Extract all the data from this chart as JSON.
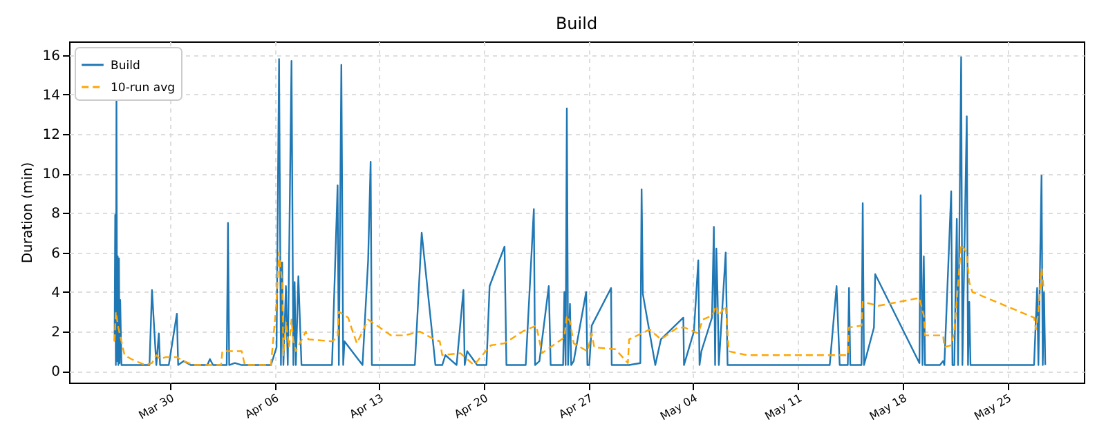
{
  "chart_data": {
    "type": "line",
    "title": "Build",
    "ylabel": "Duration (min)",
    "grid": true,
    "legend": "top left",
    "xlim": [
      "--03-23T06:00",
      "--05-30T03:00"
    ],
    "xticks": [
      {
        "value": "--03-30",
        "label": "Mar 30"
      },
      {
        "value": "--04-06",
        "label": "Apr 06"
      },
      {
        "value": "--04-13",
        "label": "Apr 13"
      },
      {
        "value": "--04-20",
        "label": "Apr 20"
      },
      {
        "value": "--04-27",
        "label": "Apr 27"
      },
      {
        "value": "--05-04",
        "label": "May 04"
      },
      {
        "value": "--05-11",
        "label": "May 11"
      },
      {
        "value": "--05-18",
        "label": "May 18"
      },
      {
        "value": "--05-25",
        "label": "May 25"
      }
    ],
    "ylim": [
      -0.59,
      16.69
    ],
    "yticks": [
      0,
      2,
      4,
      6,
      8,
      10,
      12,
      14,
      16
    ],
    "series": [
      {
        "name": "Build",
        "color": "#1f77b4",
        "line_style": "solid",
        "x": [
          "--03-26T07:00",
          "--03-26T08:00",
          "--03-26T09:00",
          "--03-26T10:00",
          "--03-26T11:00",
          "--03-26T12:00",
          "--03-26T13:00",
          "--03-26T14:00",
          "--03-26T15:00",
          "--03-26T16:00",
          "--03-26T18:00",
          "--03-26T23:00",
          "--03-27T21:00",
          "--03-28T15:00",
          "--03-28T19:00",
          "--03-29T02:00",
          "--03-29T06:00",
          "--03-29T08:00",
          "--03-29T22:00",
          "--03-30T11:00",
          "--03-30T13:00",
          "--03-30T22:00",
          "--03-31T09:00",
          "--04-01T12:00",
          "--04-01T16:00",
          "--04-01T21:00",
          "--04-02T19:00",
          "--04-02T21:00",
          "--04-02T23:00",
          "--04-03T08:00",
          "--04-03T19:00",
          "--04-05T05:00",
          "--04-05T18:00",
          "--04-06T03:00",
          "--04-06T07:00",
          "--04-06T10:00",
          "--04-06T12:00",
          "--04-06T14:00",
          "--04-06T18:00",
          "--04-06T21:00",
          "--04-07T03:00",
          "--04-07T06:00",
          "--04-07T08:00",
          "--04-07T10:00",
          "--04-07T14:00",
          "--04-07T19:00",
          "--04-09T20:00",
          "--04-10T05:00",
          "--04-10T07:00",
          "--04-10T11:00",
          "--04-10T14:00",
          "--04-10T16:00",
          "--04-11T21:00",
          "--04-12T06:00",
          "--04-12T10:00",
          "--04-12T12:00",
          "--04-15T09:00",
          "--04-15T20:00",
          "--04-16T18:00",
          "--04-17T05:00",
          "--04-17T10:00",
          "--04-18T04:00",
          "--04-18T15:00",
          "--04-18T17:00",
          "--04-18T21:00",
          "--04-19T13:00",
          "--04-20T04:00",
          "--04-20T09:00",
          "--04-21T09:00",
          "--04-21T12:00",
          "--04-22T19:00",
          "--04-23T08:00",
          "--04-23T10:00",
          "--04-23T17:00",
          "--04-24T08:00",
          "--04-24T11:00",
          "--04-25T07:00",
          "--04-25T09:00",
          "--04-25T11:00",
          "--04-25T13:00",
          "--04-25T15:00",
          "--04-25T18:00",
          "--04-25T20:00",
          "--04-26T00:00",
          "--04-26T20:00",
          "--04-26T22:00",
          "--04-27T01:00",
          "--04-27T05:00",
          "--04-28T12:00",
          "--04-28T13:00",
          "--04-29T17:00",
          "--04-30T11:00",
          "--04-30T13:00",
          "--04-30T15:00",
          "--05-01T11:00",
          "--05-01T20:00",
          "--05-03T08:00",
          "--05-03T09:00",
          "--05-04T01:00",
          "--05-04T08:00",
          "--05-04T10:00",
          "--05-04T13:00",
          "--05-05T06:00",
          "--05-05T09:00",
          "--05-05T11:00",
          "--05-05T13:00",
          "--05-05T15:00",
          "--05-05T17:00",
          "--05-06T04:00",
          "--05-06T07:00",
          "--05-07T14:00",
          "--05-13T03:00",
          "--05-13T14:00",
          "--05-13T19:00",
          "--05-14T08:00",
          "--05-14T10:00",
          "--05-14T12:00",
          "--05-15T06:00",
          "--05-15T08:00",
          "--05-15T10:00",
          "--05-16T02:00",
          "--05-16T04:00",
          "--05-19T03:00",
          "--05-19T05:00",
          "--05-19T08:00",
          "--05-19T10:00",
          "--05-19T12:00",
          "--05-20T12:00",
          "--05-20T17:00",
          "--05-20T19:00",
          "--05-21T06:00",
          "--05-21T08:00",
          "--05-21T11:00",
          "--05-21T15:00",
          "--05-21T17:00",
          "--05-21T22:00",
          "--05-22T00:00",
          "--05-22T07:00",
          "--05-22T09:00",
          "--05-22T11:00",
          "--05-22T13:00",
          "--05-26T19:00",
          "--05-27T00:00",
          "--05-27T02:00",
          "--05-27T07:00",
          "--05-27T09:00",
          "--05-27T11:00",
          "--05-27T13:00"
        ],
        "values": [
          1.5,
          7.9,
          0.3,
          13.7,
          0.5,
          5.8,
          0.3,
          5.7,
          0.4,
          3.6,
          0.3,
          0.3,
          0.3,
          0.3,
          4.1,
          0.3,
          1.9,
          0.3,
          0.3,
          2.9,
          0.3,
          0.5,
          0.3,
          0.3,
          0.6,
          0.3,
          0.3,
          7.5,
          0.3,
          0.4,
          0.3,
          0.3,
          0.3,
          1.2,
          15.8,
          0.3,
          5.5,
          0.3,
          4.3,
          0.3,
          15.7,
          0.3,
          4.5,
          0.3,
          4.8,
          0.3,
          0.3,
          9.4,
          0.3,
          15.5,
          0.3,
          1.5,
          0.3,
          5.6,
          10.6,
          0.3,
          0.3,
          7.0,
          0.3,
          0.3,
          0.8,
          0.3,
          4.1,
          0.3,
          1.0,
          0.3,
          0.3,
          4.3,
          6.3,
          0.3,
          0.3,
          8.2,
          0.3,
          0.5,
          4.3,
          0.3,
          0.3,
          4.0,
          0.3,
          13.3,
          0.3,
          3.4,
          0.3,
          0.5,
          4.0,
          0.3,
          0.3,
          2.3,
          4.2,
          0.3,
          0.3,
          0.4,
          9.2,
          3.9,
          0.3,
          1.6,
          2.7,
          0.3,
          2.0,
          5.6,
          0.3,
          1.0,
          2.7,
          7.3,
          0.3,
          6.2,
          3.8,
          0.3,
          6.0,
          0.3,
          0.3,
          0.3,
          4.3,
          0.3,
          0.3,
          4.2,
          0.3,
          0.3,
          8.5,
          0.3,
          2.2,
          4.9,
          0.4,
          8.9,
          0.3,
          5.8,
          0.3,
          0.3,
          0.5,
          0.3,
          9.1,
          0.3,
          0.3,
          7.7,
          0.3,
          15.9,
          0.3,
          12.9,
          0.3,
          3.5,
          0.3,
          0.3,
          4.2,
          0.3,
          9.9,
          0.3,
          4.0,
          0.3
        ]
      },
      {
        "name": "10-run avg",
        "color": "#ffa500",
        "line_style": "dashed",
        "x": [
          "--03-26T07:00",
          "--03-26T09:00",
          "--03-26T13:00",
          "--03-26T18:00",
          "--03-26T23:00",
          "--03-27T10:00",
          "--03-28T08:00",
          "--03-28T19:00",
          "--03-29T02:00",
          "--03-29T08:00",
          "--03-29T17:00",
          "--03-30T11:00",
          "--03-30T22:00",
          "--03-31T14:00",
          "--04-02T10:00",
          "--04-02T12:00",
          "--04-03T19:00",
          "--04-04T00:00",
          "--04-05T18:00",
          "--04-06T03:00",
          "--04-06T07:00",
          "--04-06T12:00",
          "--04-06T14:00",
          "--04-06T18:00",
          "--04-06T23:00",
          "--04-07T03:00",
          "--04-07T06:00",
          "--04-07T10:00",
          "--04-08T02:00",
          "--04-08T06:00",
          "--04-09T20:00",
          "--04-10T05:00",
          "--04-10T07:00",
          "--04-10T22:00",
          "--04-11T03:00",
          "--04-11T12:00",
          "--04-12T06:00",
          "--04-13T19:00",
          "--04-14T17:00",
          "--04-15T17:00",
          "--04-16T16:00",
          "--04-17T01:00",
          "--04-17T05:00",
          "--04-18T10:00",
          "--04-19T08:00",
          "--04-20T00:00",
          "--04-20T11:00",
          "--04-21T09:00",
          "--04-22T14:00",
          "--04-23T12:00",
          "--04-23T21:00",
          "--04-24T15:00",
          "--04-25T09:00",
          "--04-25T13:00",
          "--04-25T18:00",
          "--04-26T00:00",
          "--04-26T22:00",
          "--04-27T05:00",
          "--04-27T09:00",
          "--04-28T19:00",
          "--04-29T15:00",
          "--04-29T17:00",
          "--05-01T02:00",
          "--05-01T20:00",
          "--05-02T23:00",
          "--05-03T10:00",
          "--05-04T08:00",
          "--05-04T15:00",
          "--05-05T06:00",
          "--05-05T13:00",
          "--05-05T17:00",
          "--05-06T04:00",
          "--05-06T09:00",
          "--05-07T14:00",
          "--05-14T08:00",
          "--05-14T10:00",
          "--05-15T06:00",
          "--05-15T08:00",
          "--05-16T09:00",
          "--05-19T03:00",
          "--05-19T10:00",
          "--05-19T12:00",
          "--05-20T17:00",
          "--05-20T19:00",
          "--05-21T06:00",
          "--05-21T11:00",
          "--05-21T22:00",
          "--05-22T07:00",
          "--05-22T11:00",
          "--05-22T16:00",
          "--05-26T19:00",
          "--05-26T22:00",
          "--05-27T02:00",
          "--05-27T07:00",
          "--05-27T11:00"
        ],
        "values": [
          1.5,
          3.0,
          2.2,
          1.5,
          0.8,
          0.6,
          0.3,
          0.4,
          0.8,
          0.6,
          0.7,
          0.7,
          0.5,
          0.3,
          0.3,
          1.0,
          1.0,
          0.3,
          0.3,
          3.5,
          6.0,
          4.5,
          0.8,
          2.5,
          1.2,
          2.6,
          1.5,
          1.0,
          2.0,
          1.6,
          1.5,
          1.7,
          3.0,
          2.7,
          2.2,
          1.4,
          2.6,
          1.8,
          1.8,
          2.0,
          1.6,
          1.5,
          0.8,
          0.9,
          0.3,
          0.9,
          1.3,
          1.4,
          2.0,
          2.3,
          0.9,
          1.3,
          1.7,
          2.8,
          2.5,
          1.4,
          1.0,
          1.9,
          1.2,
          1.1,
          0.4,
          1.6,
          2.1,
          1.6,
          2.2,
          2.2,
          1.9,
          2.6,
          2.8,
          3.3,
          2.8,
          3.3,
          1.0,
          0.8,
          0.8,
          2.2,
          2.3,
          3.5,
          3.3,
          3.7,
          2.8,
          1.8,
          1.8,
          1.2,
          1.3,
          2.0,
          6.4,
          6.0,
          4.5,
          4.0,
          2.7,
          2.1,
          3.0,
          5.2,
          4.0
        ]
      }
    ]
  }
}
